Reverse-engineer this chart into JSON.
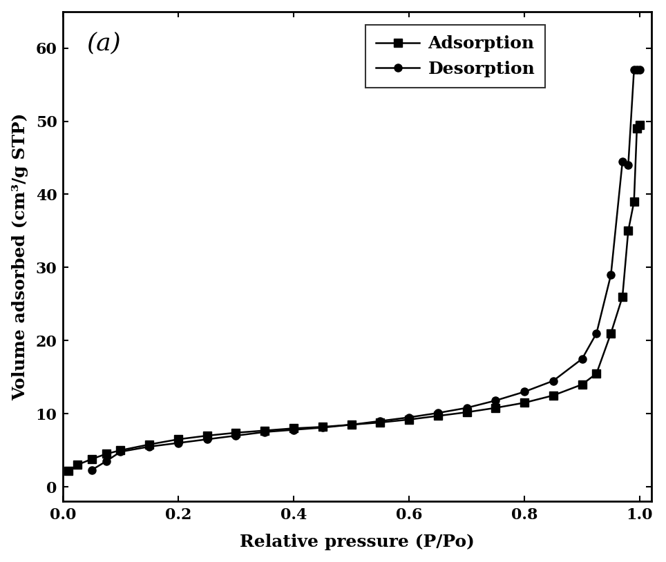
{
  "adsorption_x": [
    0.01,
    0.025,
    0.05,
    0.075,
    0.1,
    0.15,
    0.2,
    0.25,
    0.3,
    0.35,
    0.4,
    0.45,
    0.5,
    0.55,
    0.6,
    0.65,
    0.7,
    0.75,
    0.8,
    0.85,
    0.9,
    0.925,
    0.95,
    0.97,
    0.98,
    0.99,
    0.995,
    1.0
  ],
  "adsorption_y": [
    2.2,
    3.0,
    3.8,
    4.5,
    5.0,
    5.8,
    6.5,
    7.0,
    7.4,
    7.7,
    8.0,
    8.2,
    8.5,
    8.8,
    9.2,
    9.7,
    10.2,
    10.8,
    11.5,
    12.5,
    14.0,
    15.5,
    21.0,
    26.0,
    35.0,
    39.0,
    49.0,
    49.5
  ],
  "desorption_x": [
    0.05,
    0.075,
    0.1,
    0.15,
    0.2,
    0.25,
    0.3,
    0.35,
    0.4,
    0.45,
    0.5,
    0.55,
    0.6,
    0.65,
    0.7,
    0.75,
    0.8,
    0.85,
    0.9,
    0.925,
    0.95,
    0.97,
    0.98,
    0.99,
    0.995,
    1.0
  ],
  "desorption_y": [
    2.3,
    3.5,
    4.8,
    5.5,
    6.0,
    6.5,
    7.0,
    7.5,
    7.8,
    8.1,
    8.5,
    9.0,
    9.5,
    10.1,
    10.8,
    11.8,
    13.0,
    14.5,
    17.5,
    21.0,
    29.0,
    44.5,
    44.0,
    57.0,
    57.0,
    57.0
  ],
  "xlabel": "Relative pressure (P/Po)",
  "ylabel": "Volume adsorbed (cm³/g STP)",
  "label_adsorption": "Adsorption",
  "label_desorption": "Desorption",
  "annotation": "(a)",
  "xlim": [
    0.0,
    1.02
  ],
  "ylim": [
    -2,
    65
  ],
  "xticks": [
    0.0,
    0.2,
    0.4,
    0.6,
    0.8,
    1.0
  ],
  "yticks": [
    0,
    10,
    20,
    30,
    40,
    50,
    60
  ],
  "line_color": "#000000",
  "background_color": "#ffffff",
  "fontsize_labels": 18,
  "fontsize_ticks": 16,
  "fontsize_annotation": 26,
  "linewidth": 1.8,
  "markersize": 8
}
